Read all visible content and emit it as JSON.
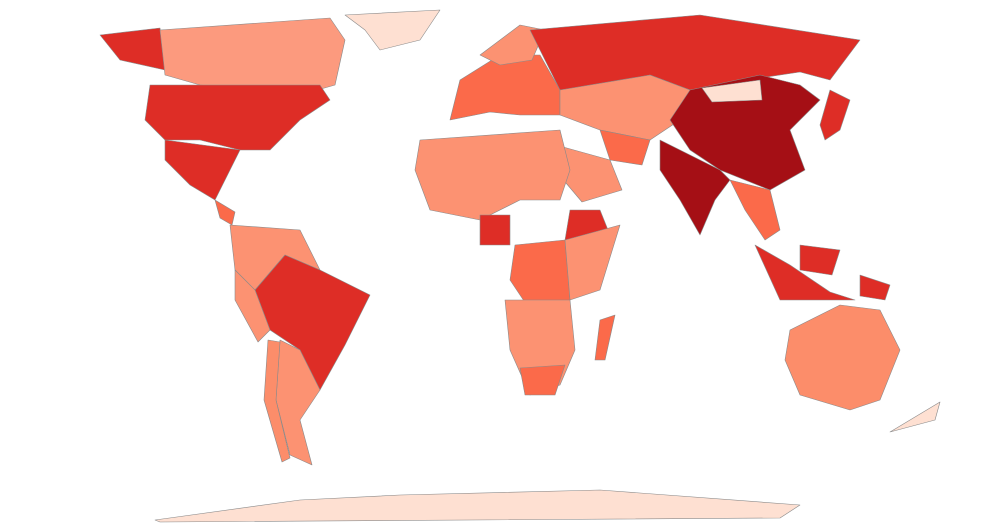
{
  "map": {
    "regions": [
      {
        "color": "#de2d26"
      },
      {
        "color": "#fc9a7e"
      },
      {
        "color": "#fee0d2"
      },
      {
        "color": "#de2d26"
      },
      {
        "color": "#de2d26"
      },
      {
        "color": "#fb6a4a"
      },
      {
        "color": "#fc9272"
      },
      {
        "color": "#de2d26"
      },
      {
        "color": "#fc9272"
      },
      {
        "color": "#fc9272"
      },
      {
        "color": "#fc8d6a"
      },
      {
        "color": "#fb6a4a"
      },
      {
        "color": "#fc9272"
      },
      {
        "color": "#de2d26"
      },
      {
        "color": "#fc9272"
      },
      {
        "color": "#fb6a4a"
      },
      {
        "color": "#fc9272"
      },
      {
        "color": "#a50f15"
      },
      {
        "color": "#fee0d2"
      },
      {
        "color": "#a50f15"
      },
      {
        "color": "#fb6a4a"
      },
      {
        "color": "#de2d26"
      },
      {
        "color": "#de2d26"
      },
      {
        "color": "#de2d26"
      },
      {
        "color": "#de2d26"
      },
      {
        "color": "#fc9272"
      },
      {
        "color": "#de2d26"
      },
      {
        "color": "#fb6a4a"
      },
      {
        "color": "#de2d26"
      },
      {
        "color": "#fc9272"
      },
      {
        "color": "#fc9272"
      },
      {
        "color": "#fb6a4a"
      },
      {
        "color": "#fb6a4a"
      },
      {
        "color": "#fc8d6a"
      },
      {
        "color": "#fee0d2"
      },
      {
        "color": "#fee0d2"
      }
    ]
  }
}
